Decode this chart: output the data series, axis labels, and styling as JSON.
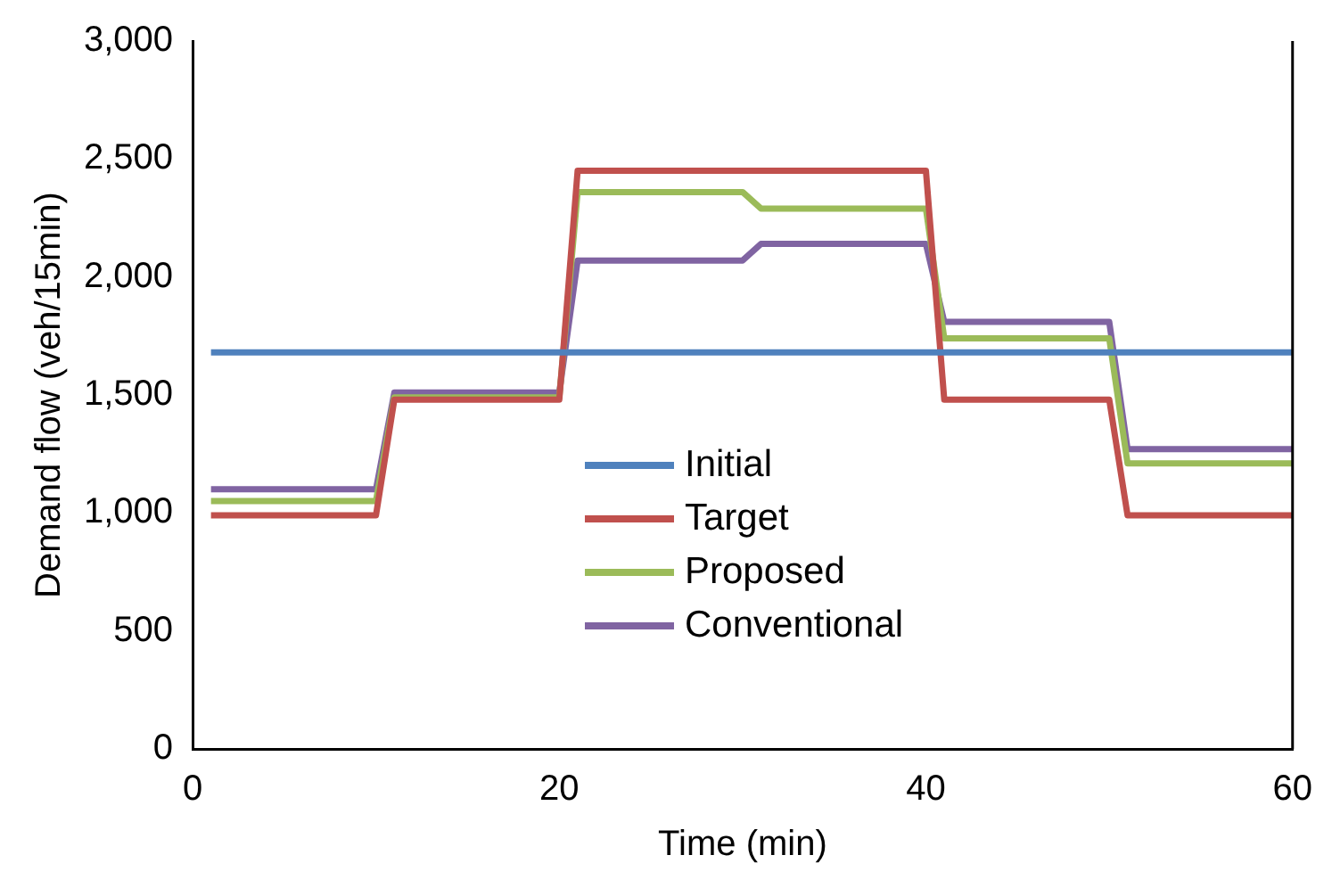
{
  "chart_data": {
    "type": "line",
    "xlabel": "Time (min)",
    "ylabel": "Demand flow (veh/15min)",
    "xlim": [
      0,
      60
    ],
    "xticks": [
      0,
      20,
      40,
      60
    ],
    "ylim": [
      0,
      3000
    ],
    "yticks": [
      0,
      500,
      {
        "value": 1000,
        "label": "1,000"
      },
      {
        "value": 1500,
        "label": "1,500"
      },
      {
        "value": 2000,
        "label": "2,000"
      },
      {
        "value": 2500,
        "label": "2,500"
      },
      {
        "value": 3000,
        "label": "3,000"
      }
    ],
    "grid": false,
    "legend": "center",
    "marker": "none",
    "line_style": "solid",
    "series": [
      {
        "name": "Initial",
        "color": "#4f81bd",
        "x": [
          1,
          60
        ],
        "values": [
          1680,
          1680
        ]
      },
      {
        "name": "Target",
        "color": "#c0504d",
        "x": [
          1,
          10,
          11,
          20,
          21,
          30,
          31,
          40,
          41,
          50,
          51,
          60
        ],
        "values": [
          990,
          990,
          1480,
          1480,
          2450,
          2450,
          2450,
          2450,
          1480,
          1480,
          990,
          990
        ]
      },
      {
        "name": "Proposed",
        "color": "#9bbb59",
        "x": [
          1,
          10,
          11,
          20,
          21,
          30,
          31,
          40,
          41,
          50,
          51,
          60
        ],
        "values": [
          1050,
          1050,
          1490,
          1490,
          2360,
          2360,
          2290,
          2290,
          1740,
          1740,
          1210,
          1210
        ]
      },
      {
        "name": "Conventional",
        "color": "#8064a2",
        "x": [
          1,
          10,
          11,
          20,
          21,
          30,
          31,
          40,
          41,
          50,
          51,
          60
        ],
        "values": [
          1100,
          1100,
          1510,
          1510,
          2070,
          2070,
          2140,
          2140,
          1810,
          1810,
          1270,
          1270
        ]
      }
    ]
  }
}
